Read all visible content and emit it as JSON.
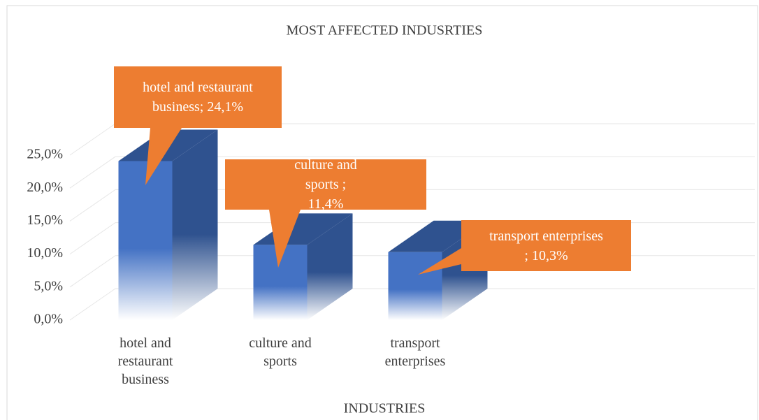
{
  "chart_data": {
    "type": "bar3d",
    "title": "MOST AFFECTED INDUSRTIES",
    "x_label": "INDUSTRIES",
    "categories": [
      "hotel and restaurant business",
      "culture and sports",
      "transport enterprises"
    ],
    "values": [
      24.1,
      11.4,
      10.3
    ],
    "value_labels": [
      "hotel and restaurant business; 24,1%",
      "culture and sports ; 11,4%",
      "transport enterprises ; 10,3%"
    ],
    "color": "#4472c4",
    "label_color": "#ed7d31",
    "ylim": [
      0,
      25
    ],
    "yticks": [
      {
        "value": 0,
        "label": "0,0%"
      },
      {
        "value": 5,
        "label": "5,0%"
      },
      {
        "value": 10,
        "label": "10,0%"
      },
      {
        "value": 15,
        "label": "15,0%"
      },
      {
        "value": 20,
        "label": "20,0%"
      },
      {
        "value": 25,
        "label": "25,0%"
      }
    ],
    "grid": true
  }
}
